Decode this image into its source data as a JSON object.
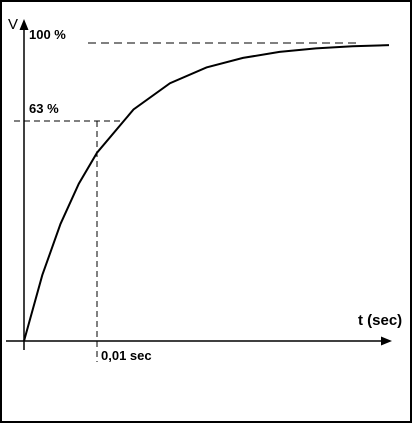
{
  "chart_data": {
    "type": "line",
    "xlabel": "t (sec)",
    "ylabel": "V",
    "y_unit": "%",
    "xlim": [
      0,
      0.055
    ],
    "ylim": [
      0,
      100
    ],
    "time_constant": 0.01,
    "series": [
      {
        "x": [
          0,
          0.0025,
          0.005,
          0.0075,
          0.01,
          0.015,
          0.02,
          0.025,
          0.03,
          0.035,
          0.04,
          0.045,
          0.05
        ],
        "values": [
          0,
          22.1,
          39.3,
          52.8,
          63.2,
          77.7,
          86.5,
          91.8,
          95.0,
          97.0,
          98.2,
          98.9,
          99.3
        ]
      }
    ],
    "annotations": {
      "level_100": "100 %",
      "level_63": "63 %",
      "tau_label": "0,01 sec"
    },
    "grid": false,
    "legend": "none"
  }
}
